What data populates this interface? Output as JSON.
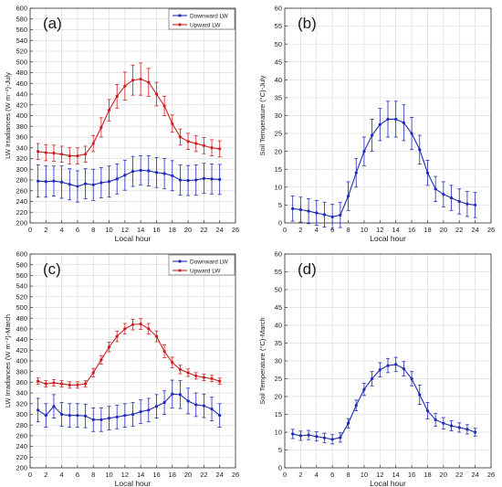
{
  "chart_data": [
    {
      "type": "line",
      "panel_label": "(a)",
      "xlabel": "Local hour",
      "ylabel": "LW Irradiances (W m⁻²)-July",
      "xlim": [
        0,
        26
      ],
      "ylim": [
        200,
        600
      ],
      "xticks": [
        0,
        2,
        4,
        6,
        8,
        10,
        12,
        14,
        16,
        18,
        20,
        22,
        24,
        26
      ],
      "yticks": [
        200,
        220,
        240,
        260,
        280,
        300,
        320,
        340,
        360,
        380,
        400,
        420,
        440,
        460,
        480,
        500,
        520,
        540,
        560,
        580,
        600
      ],
      "grid": true,
      "legend": "top-right",
      "x": [
        1,
        2,
        3,
        4,
        5,
        6,
        7,
        8,
        9,
        10,
        11,
        12,
        13,
        14,
        15,
        16,
        17,
        18,
        19,
        20,
        21,
        22,
        23,
        24
      ],
      "series": [
        {
          "name": "Downward LW",
          "color": "#1f2bb5",
          "values": [
            278,
            277,
            278,
            276,
            272,
            268,
            273,
            271,
            275,
            277,
            282,
            289,
            296,
            298,
            297,
            294,
            292,
            288,
            280,
            279,
            280,
            283,
            282,
            281
          ],
          "err": [
            30,
            29,
            28,
            30,
            29,
            29,
            28,
            29,
            28,
            29,
            28,
            28,
            28,
            27,
            28,
            28,
            28,
            28,
            28,
            28,
            28,
            28,
            28,
            28
          ]
        },
        {
          "name": "Upward LW",
          "color": "#cc2020",
          "values": [
            333,
            331,
            330,
            328,
            325,
            325,
            328,
            348,
            378,
            410,
            436,
            455,
            466,
            468,
            462,
            440,
            418,
            385,
            360,
            352,
            348,
            344,
            340,
            338
          ],
          "err": [
            15,
            15,
            15,
            15,
            15,
            15,
            15,
            15,
            18,
            20,
            22,
            26,
            28,
            30,
            26,
            22,
            18,
            16,
            15,
            15,
            15,
            15,
            15,
            15
          ]
        }
      ]
    },
    {
      "type": "line",
      "panel_label": "(b)",
      "xlabel": "Local hour",
      "ylabel": "Soil Temperature (°C)-July",
      "xlim": [
        0,
        26
      ],
      "ylim": [
        0,
        60
      ],
      "xticks": [
        0,
        2,
        4,
        6,
        8,
        10,
        12,
        14,
        16,
        18,
        20,
        22,
        24,
        26
      ],
      "yticks": [
        0,
        5,
        10,
        15,
        20,
        25,
        30,
        35,
        40,
        45,
        50,
        55,
        60
      ],
      "grid": true,
      "legend": "none",
      "x": [
        1,
        2,
        3,
        4,
        5,
        6,
        7,
        8,
        9,
        10,
        11,
        12,
        13,
        14,
        15,
        16,
        17,
        18,
        19,
        20,
        21,
        22,
        23,
        24
      ],
      "series": [
        {
          "name": "",
          "color": "#1f2bb5",
          "values": [
            4,
            3.7,
            3.3,
            2.8,
            2.3,
            1.7,
            2.2,
            7.5,
            14,
            20,
            24.5,
            27.5,
            29,
            29,
            28,
            25,
            20.5,
            14,
            9.5,
            8,
            7,
            6,
            5.3,
            5
          ],
          "err": [
            3.5,
            3.5,
            3.5,
            3.5,
            3.5,
            3.5,
            3.5,
            4,
            4,
            4,
            4.5,
            4.5,
            5,
            5,
            5,
            4.5,
            4,
            3.5,
            3.5,
            3.5,
            3.5,
            3.5,
            3.5,
            3.5
          ]
        }
      ]
    },
    {
      "type": "line",
      "panel_label": "(c)",
      "xlabel": "Local hour",
      "ylabel": "LW Irradiances (W m⁻²)-March",
      "xlim": [
        0,
        26
      ],
      "ylim": [
        200,
        600
      ],
      "xticks": [
        0,
        2,
        4,
        6,
        8,
        10,
        12,
        14,
        16,
        18,
        20,
        22,
        24,
        26
      ],
      "yticks": [
        200,
        220,
        240,
        260,
        280,
        300,
        320,
        340,
        360,
        380,
        400,
        420,
        440,
        460,
        480,
        500,
        520,
        540,
        560,
        580,
        600
      ],
      "grid": true,
      "legend": "top-right",
      "x": [
        1,
        2,
        3,
        4,
        5,
        6,
        7,
        8,
        9,
        10,
        11,
        12,
        13,
        14,
        15,
        16,
        17,
        18,
        19,
        20,
        21,
        22,
        23,
        24
      ],
      "series": [
        {
          "name": "Downward LW",
          "color": "#1f2bb5",
          "values": [
            308,
            298,
            315,
            300,
            298,
            298,
            297,
            290,
            290,
            293,
            295,
            298,
            300,
            305,
            308,
            315,
            322,
            338,
            337,
            325,
            318,
            316,
            310,
            298
          ],
          "err": [
            22,
            22,
            22,
            22,
            22,
            22,
            22,
            22,
            22,
            22,
            22,
            22,
            22,
            22,
            22,
            22,
            22,
            26,
            26,
            24,
            22,
            22,
            22,
            22
          ]
        },
        {
          "name": "Upward LW",
          "color": "#cc2020",
          "values": [
            362,
            357,
            359,
            357,
            355,
            355,
            357,
            378,
            402,
            426,
            446,
            460,
            468,
            469,
            460,
            446,
            418,
            397,
            384,
            378,
            372,
            369,
            367,
            362
          ],
          "err": [
            6,
            6,
            6,
            6,
            6,
            6,
            6,
            8,
            8,
            9,
            10,
            10,
            10,
            10,
            10,
            10,
            12,
            10,
            8,
            7,
            6,
            6,
            6,
            6
          ]
        }
      ]
    },
    {
      "type": "line",
      "panel_label": "(d)",
      "xlabel": "Local hour",
      "ylabel": "Soil Temperature (°C)-March",
      "xlim": [
        0,
        26
      ],
      "ylim": [
        0,
        60
      ],
      "xticks": [
        0,
        2,
        4,
        6,
        8,
        10,
        12,
        14,
        16,
        18,
        20,
        22,
        24,
        26
      ],
      "yticks": [
        0,
        5,
        10,
        15,
        20,
        25,
        30,
        35,
        40,
        45,
        50,
        55,
        60
      ],
      "grid": true,
      "legend": "none",
      "x": [
        1,
        2,
        3,
        4,
        5,
        6,
        7,
        8,
        9,
        10,
        11,
        12,
        13,
        14,
        15,
        16,
        17,
        18,
        19,
        20,
        21,
        22,
        23,
        24
      ],
      "series": [
        {
          "name": "",
          "color": "#1f2bb5",
          "values": [
            9.5,
            9,
            9.2,
            8.8,
            8.4,
            8,
            8.5,
            12.5,
            17.5,
            22,
            25,
            27.5,
            28.7,
            29,
            27.8,
            25,
            20.5,
            16,
            13.5,
            12.5,
            11.8,
            11.3,
            10.8,
            10
          ],
          "err": [
            1.3,
            1.3,
            1.3,
            1.3,
            1.3,
            1.3,
            1.3,
            1.3,
            1.5,
            1.7,
            2,
            2,
            2,
            2,
            2,
            2,
            2.7,
            2.3,
            1.8,
            1.6,
            1.4,
            1.3,
            1.3,
            1.1
          ]
        }
      ]
    }
  ]
}
